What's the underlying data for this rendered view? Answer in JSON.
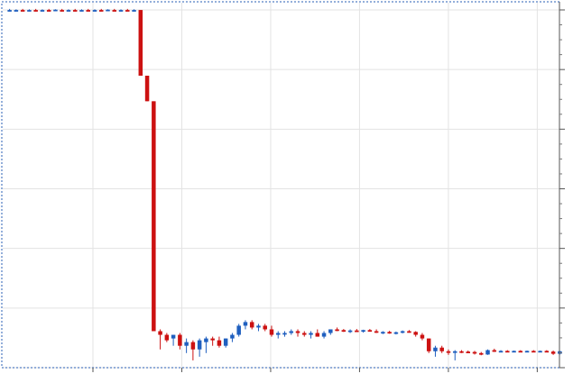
{
  "chart_data": {
    "type": "candlestick",
    "title": "",
    "xlabel": "",
    "ylabel": "",
    "grid": true,
    "legend": "none",
    "ylim": [
      0,
      100
    ],
    "x_tick_count": 6,
    "y_gridline_count": 6,
    "colors": {
      "up": "#1f5fbf",
      "down": "#cc1111",
      "grid": "#e3e3e3",
      "border": "#2a5fb4"
    },
    "candles": [
      {
        "o": 98,
        "h": 98.3,
        "l": 97.7,
        "c": 98
      },
      {
        "o": 98,
        "h": 98.2,
        "l": 97.8,
        "c": 98
      },
      {
        "o": 98,
        "h": 98.3,
        "l": 97.7,
        "c": 97.9
      },
      {
        "o": 98,
        "h": 98.2,
        "l": 97.8,
        "c": 98
      },
      {
        "o": 98,
        "h": 98.3,
        "l": 97.7,
        "c": 97.9
      },
      {
        "o": 98,
        "h": 98.2,
        "l": 97.8,
        "c": 98
      },
      {
        "o": 98,
        "h": 98.3,
        "l": 97.8,
        "c": 97.9
      },
      {
        "o": 98,
        "h": 98.2,
        "l": 97.7,
        "c": 98.1
      },
      {
        "o": 98,
        "h": 98.3,
        "l": 97.8,
        "c": 97.9
      },
      {
        "o": 98,
        "h": 98.2,
        "l": 97.8,
        "c": 98
      },
      {
        "o": 98,
        "h": 98.3,
        "l": 97.7,
        "c": 97.9
      },
      {
        "o": 98,
        "h": 98.2,
        "l": 97.8,
        "c": 98
      },
      {
        "o": 98,
        "h": 98.3,
        "l": 97.7,
        "c": 97.9
      },
      {
        "o": 98,
        "h": 98.2,
        "l": 97.8,
        "c": 98
      },
      {
        "o": 98,
        "h": 98.3,
        "l": 97.8,
        "c": 97.9
      },
      {
        "o": 98,
        "h": 98.2,
        "l": 97.7,
        "c": 98.1
      },
      {
        "o": 98,
        "h": 98.3,
        "l": 97.8,
        "c": 97.9
      },
      {
        "o": 98,
        "h": 98.2,
        "l": 97.8,
        "c": 98
      },
      {
        "o": 98,
        "h": 98.3,
        "l": 97.7,
        "c": 97.9
      },
      {
        "o": 98,
        "h": 98.2,
        "l": 97.8,
        "c": 98
      },
      {
        "o": 98,
        "h": 98,
        "l": 80,
        "c": 80
      },
      {
        "o": 80,
        "h": 80,
        "l": 73,
        "c": 73
      },
      {
        "o": 73,
        "h": 73,
        "l": 10,
        "c": 10
      },
      {
        "o": 10,
        "h": 10.5,
        "l": 5,
        "c": 9
      },
      {
        "o": 9,
        "h": 9.5,
        "l": 7,
        "c": 7.5
      },
      {
        "o": 8,
        "h": 9,
        "l": 6,
        "c": 9
      },
      {
        "o": 9,
        "h": 9.5,
        "l": 5,
        "c": 6
      },
      {
        "o": 6,
        "h": 8,
        "l": 4,
        "c": 7
      },
      {
        "o": 7,
        "h": 7.5,
        "l": 2,
        "c": 5
      },
      {
        "o": 5,
        "h": 8,
        "l": 3,
        "c": 7.5
      },
      {
        "o": 7,
        "h": 8.5,
        "l": 4,
        "c": 8
      },
      {
        "o": 8,
        "h": 8.5,
        "l": 6,
        "c": 7.5
      },
      {
        "o": 7.5,
        "h": 8.5,
        "l": 5.5,
        "c": 6
      },
      {
        "o": 6,
        "h": 8,
        "l": 5.5,
        "c": 8
      },
      {
        "o": 8,
        "h": 9.5,
        "l": 7,
        "c": 9
      },
      {
        "o": 9,
        "h": 12,
        "l": 8.5,
        "c": 11.5
      },
      {
        "o": 11.5,
        "h": 13,
        "l": 10.5,
        "c": 12.5
      },
      {
        "o": 12.5,
        "h": 13,
        "l": 10.5,
        "c": 11
      },
      {
        "o": 11,
        "h": 12,
        "l": 10,
        "c": 11.5
      },
      {
        "o": 11.5,
        "h": 12,
        "l": 10,
        "c": 10.5
      },
      {
        "o": 10.5,
        "h": 11.5,
        "l": 8.5,
        "c": 9
      },
      {
        "o": 9,
        "h": 10,
        "l": 8,
        "c": 9.5
      },
      {
        "o": 9.5,
        "h": 10,
        "l": 8.5,
        "c": 9.5
      },
      {
        "o": 9.5,
        "h": 10.5,
        "l": 9,
        "c": 10
      },
      {
        "o": 10,
        "h": 10.5,
        "l": 8.5,
        "c": 9.5
      },
      {
        "o": 9.5,
        "h": 10,
        "l": 8.5,
        "c": 9
      },
      {
        "o": 9,
        "h": 10,
        "l": 8,
        "c": 9.5
      },
      {
        "o": 9.5,
        "h": 10.5,
        "l": 8.5,
        "c": 8.5
      },
      {
        "o": 8.5,
        "h": 10,
        "l": 8,
        "c": 9.5
      },
      {
        "o": 9.5,
        "h": 10.5,
        "l": 9,
        "c": 10.5
      },
      {
        "o": 10.5,
        "h": 11,
        "l": 10,
        "c": 10.3
      },
      {
        "o": 10.3,
        "h": 10.6,
        "l": 9.8,
        "c": 10
      },
      {
        "o": 10,
        "h": 10.5,
        "l": 9.5,
        "c": 10.2
      },
      {
        "o": 10.2,
        "h": 10.6,
        "l": 9.8,
        "c": 10
      },
      {
        "o": 10,
        "h": 10.4,
        "l": 9.6,
        "c": 10.3
      },
      {
        "o": 10.3,
        "h": 10.6,
        "l": 9.9,
        "c": 10
      },
      {
        "o": 10,
        "h": 10.5,
        "l": 9.5,
        "c": 9.6
      },
      {
        "o": 9.6,
        "h": 10,
        "l": 9.2,
        "c": 9.8
      },
      {
        "o": 9.8,
        "h": 10.1,
        "l": 9.3,
        "c": 9.5
      },
      {
        "o": 9.5,
        "h": 9.9,
        "l": 9.1,
        "c": 9.7
      },
      {
        "o": 9.7,
        "h": 10.2,
        "l": 9.4,
        "c": 10
      },
      {
        "o": 10,
        "h": 10.3,
        "l": 9.6,
        "c": 9.8
      },
      {
        "o": 9.8,
        "h": 10,
        "l": 8.5,
        "c": 9
      },
      {
        "o": 9,
        "h": 9.5,
        "l": 7.5,
        "c": 8
      },
      {
        "o": 8,
        "h": 8,
        "l": 4,
        "c": 4.5
      },
      {
        "o": 4.5,
        "h": 6,
        "l": 3,
        "c": 5.5
      },
      {
        "o": 5.5,
        "h": 6,
        "l": 4,
        "c": 4.5
      },
      {
        "o": 4.5,
        "h": 5,
        "l": 3.5,
        "c": 4.2
      },
      {
        "o": 4.2,
        "h": 4.8,
        "l": 2,
        "c": 4.5
      },
      {
        "o": 4.5,
        "h": 4.8,
        "l": 4,
        "c": 4.4
      },
      {
        "o": 4.4,
        "h": 4.7,
        "l": 4,
        "c": 4.3
      },
      {
        "o": 4.3,
        "h": 4.6,
        "l": 3.6,
        "c": 4
      },
      {
        "o": 4,
        "h": 4.3,
        "l": 3.4,
        "c": 3.6
      },
      {
        "o": 3.6,
        "h": 5,
        "l": 3.5,
        "c": 4.8
      },
      {
        "o": 4.8,
        "h": 5.2,
        "l": 4.3,
        "c": 4.5
      },
      {
        "o": 4.5,
        "h": 4.8,
        "l": 4.2,
        "c": 4.6
      },
      {
        "o": 4.6,
        "h": 4.8,
        "l": 4.3,
        "c": 4.4
      },
      {
        "o": 4.4,
        "h": 4.7,
        "l": 4.2,
        "c": 4.6
      },
      {
        "o": 4.6,
        "h": 4.8,
        "l": 4.3,
        "c": 4.4
      },
      {
        "o": 4.4,
        "h": 4.7,
        "l": 4.2,
        "c": 4.6
      },
      {
        "o": 4.6,
        "h": 4.8,
        "l": 4.3,
        "c": 4.4
      },
      {
        "o": 4.4,
        "h": 4.7,
        "l": 4.2,
        "c": 4.6
      },
      {
        "o": 4.6,
        "h": 4.8,
        "l": 4.3,
        "c": 4.4
      },
      {
        "o": 4.4,
        "h": 4.7,
        "l": 3.5,
        "c": 3.8
      },
      {
        "o": 3.8,
        "h": 4.6,
        "l": 3.6,
        "c": 4.5
      }
    ]
  }
}
